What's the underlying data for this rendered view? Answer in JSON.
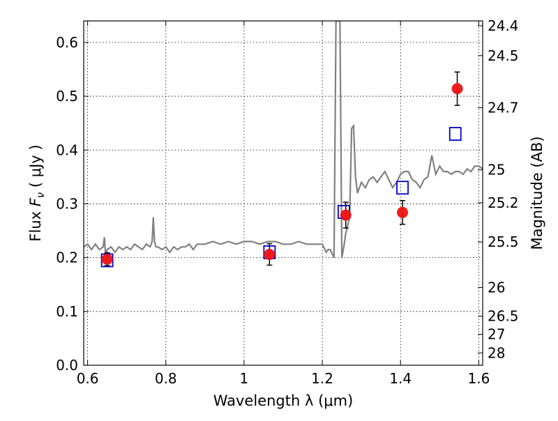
{
  "chart_data": {
    "type": "scatter",
    "xlabel": "Wavelength  λ (μm)",
    "ylabel": "Flux  F_ν  ( μJy )",
    "ylabel_right": "Magnitude (AB)",
    "xlim": [
      0.59,
      1.61
    ],
    "ylim": [
      0.0,
      0.64
    ],
    "grid": true,
    "legend": "none",
    "x_ticks": [
      0.6,
      0.8,
      1.0,
      1.2,
      1.4,
      1.6
    ],
    "x_tick_labels": [
      "0.6",
      "0.8",
      "1",
      "1.2",
      "1.4",
      "1.6"
    ],
    "y_ticks": [
      0.0,
      0.1,
      0.2,
      0.3,
      0.4,
      0.5,
      0.6
    ],
    "y_tick_labels": [
      "0.0",
      "0.1",
      "0.2",
      "0.3",
      "0.4",
      "0.5",
      "0.6"
    ],
    "mag_ticks": [
      "24.4",
      "24.5",
      "24.7",
      "25",
      "25.2",
      "25.5",
      "26",
      "26.5",
      "27",
      "28"
    ],
    "series": [
      {
        "kind": "line",
        "color": "#808080",
        "x": [
          0.59,
          0.6,
          0.61,
          0.62,
          0.63,
          0.64,
          0.643,
          0.646,
          0.65,
          0.66,
          0.67,
          0.68,
          0.69,
          0.7,
          0.71,
          0.72,
          0.73,
          0.74,
          0.75,
          0.76,
          0.765,
          0.768,
          0.771,
          0.775,
          0.78,
          0.79,
          0.8,
          0.81,
          0.82,
          0.83,
          0.84,
          0.85,
          0.86,
          0.87,
          0.88,
          0.9,
          0.92,
          0.94,
          0.96,
          0.98,
          1.0,
          1.02,
          1.04,
          1.06,
          1.08,
          1.1,
          1.12,
          1.14,
          1.16,
          1.18,
          1.2,
          1.21,
          1.215,
          1.22,
          1.23,
          1.235,
          1.238,
          1.24,
          1.245,
          1.25,
          1.255,
          1.26,
          1.27,
          1.275,
          1.28,
          1.285,
          1.29,
          1.3,
          1.31,
          1.32,
          1.33,
          1.34,
          1.35,
          1.36,
          1.37,
          1.38,
          1.39,
          1.4,
          1.41,
          1.42,
          1.43,
          1.44,
          1.45,
          1.46,
          1.47,
          1.48,
          1.49,
          1.5,
          1.51,
          1.52,
          1.53,
          1.54,
          1.55,
          1.56,
          1.57,
          1.58,
          1.59,
          1.6,
          1.61
        ],
        "y": [
          0.22,
          0.225,
          0.215,
          0.225,
          0.215,
          0.22,
          0.238,
          0.205,
          0.215,
          0.22,
          0.21,
          0.22,
          0.215,
          0.22,
          0.215,
          0.225,
          0.22,
          0.215,
          0.225,
          0.22,
          0.23,
          0.275,
          0.23,
          0.22,
          0.22,
          0.215,
          0.22,
          0.21,
          0.22,
          0.215,
          0.22,
          0.22,
          0.225,
          0.215,
          0.225,
          0.225,
          0.23,
          0.225,
          0.23,
          0.225,
          0.23,
          0.23,
          0.225,
          0.23,
          0.23,
          0.225,
          0.225,
          0.23,
          0.225,
          0.225,
          0.225,
          0.21,
          0.215,
          0.215,
          0.2,
          0.64,
          0.64,
          0.64,
          0.65,
          0.2,
          0.22,
          0.245,
          0.275,
          0.44,
          0.445,
          0.35,
          0.32,
          0.34,
          0.33,
          0.345,
          0.35,
          0.34,
          0.35,
          0.36,
          0.345,
          0.33,
          0.34,
          0.355,
          0.36,
          0.36,
          0.345,
          0.34,
          0.33,
          0.345,
          0.35,
          0.39,
          0.355,
          0.37,
          0.36,
          0.36,
          0.355,
          0.36,
          0.36,
          0.355,
          0.365,
          0.36,
          0.37,
          0.37,
          0.365
        ]
      },
      {
        "kind": "open-squares",
        "color": "#0000cc",
        "x": [
          0.65,
          1.065,
          1.255,
          1.405,
          1.54
        ],
        "y": [
          0.195,
          0.21,
          0.285,
          0.33,
          0.43
        ]
      },
      {
        "kind": "points-with-errorbars",
        "color": "#ee1111",
        "x": [
          0.65,
          1.065,
          1.26,
          1.405,
          1.545
        ],
        "y": [
          0.197,
          0.206,
          0.279,
          0.284,
          0.514
        ],
        "yerr": [
          0.012,
          0.02,
          0.024,
          0.022,
          0.031
        ]
      }
    ]
  }
}
